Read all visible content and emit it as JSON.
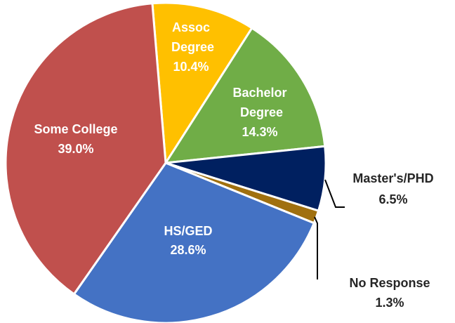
{
  "chart_data": {
    "type": "pie",
    "categories": [
      "Assoc Degree",
      "Bachelor Degree",
      "Master's/PHD",
      "No Response",
      "HS/GED",
      "Some College"
    ],
    "values": [
      10.4,
      14.3,
      6.5,
      1.3,
      28.6,
      39.0
    ],
    "value_labels": [
      "10.4%",
      "14.3%",
      "6.5%",
      "1.3%",
      "28.6%",
      "39.0%"
    ],
    "colors": [
      "#FFC000",
      "#70AD47",
      "#002060",
      "#A0700F",
      "#4472C4",
      "#C0504D"
    ]
  }
}
